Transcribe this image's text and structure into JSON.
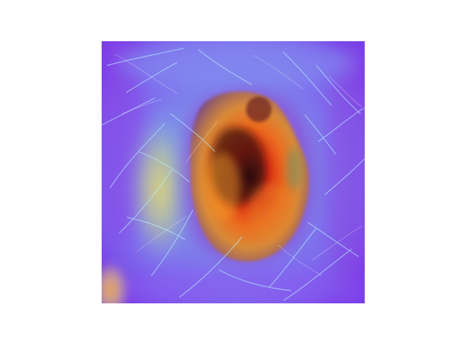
{
  "image": {
    "kind": "heatmap-overlay",
    "subject": "skin-lesion",
    "colors": {
      "background": "#ffffff",
      "base_violet": "#7b3fe6",
      "outer_blue": "#7f8ff0",
      "cyan_glow": "#78cfea",
      "yellow_glow": "#d8d27a",
      "orange_core": "#f08a2a",
      "red_core": "#d92d12",
      "dark_center": "#2d0d10",
      "hair_lines": "#b9f4ff"
    }
  }
}
